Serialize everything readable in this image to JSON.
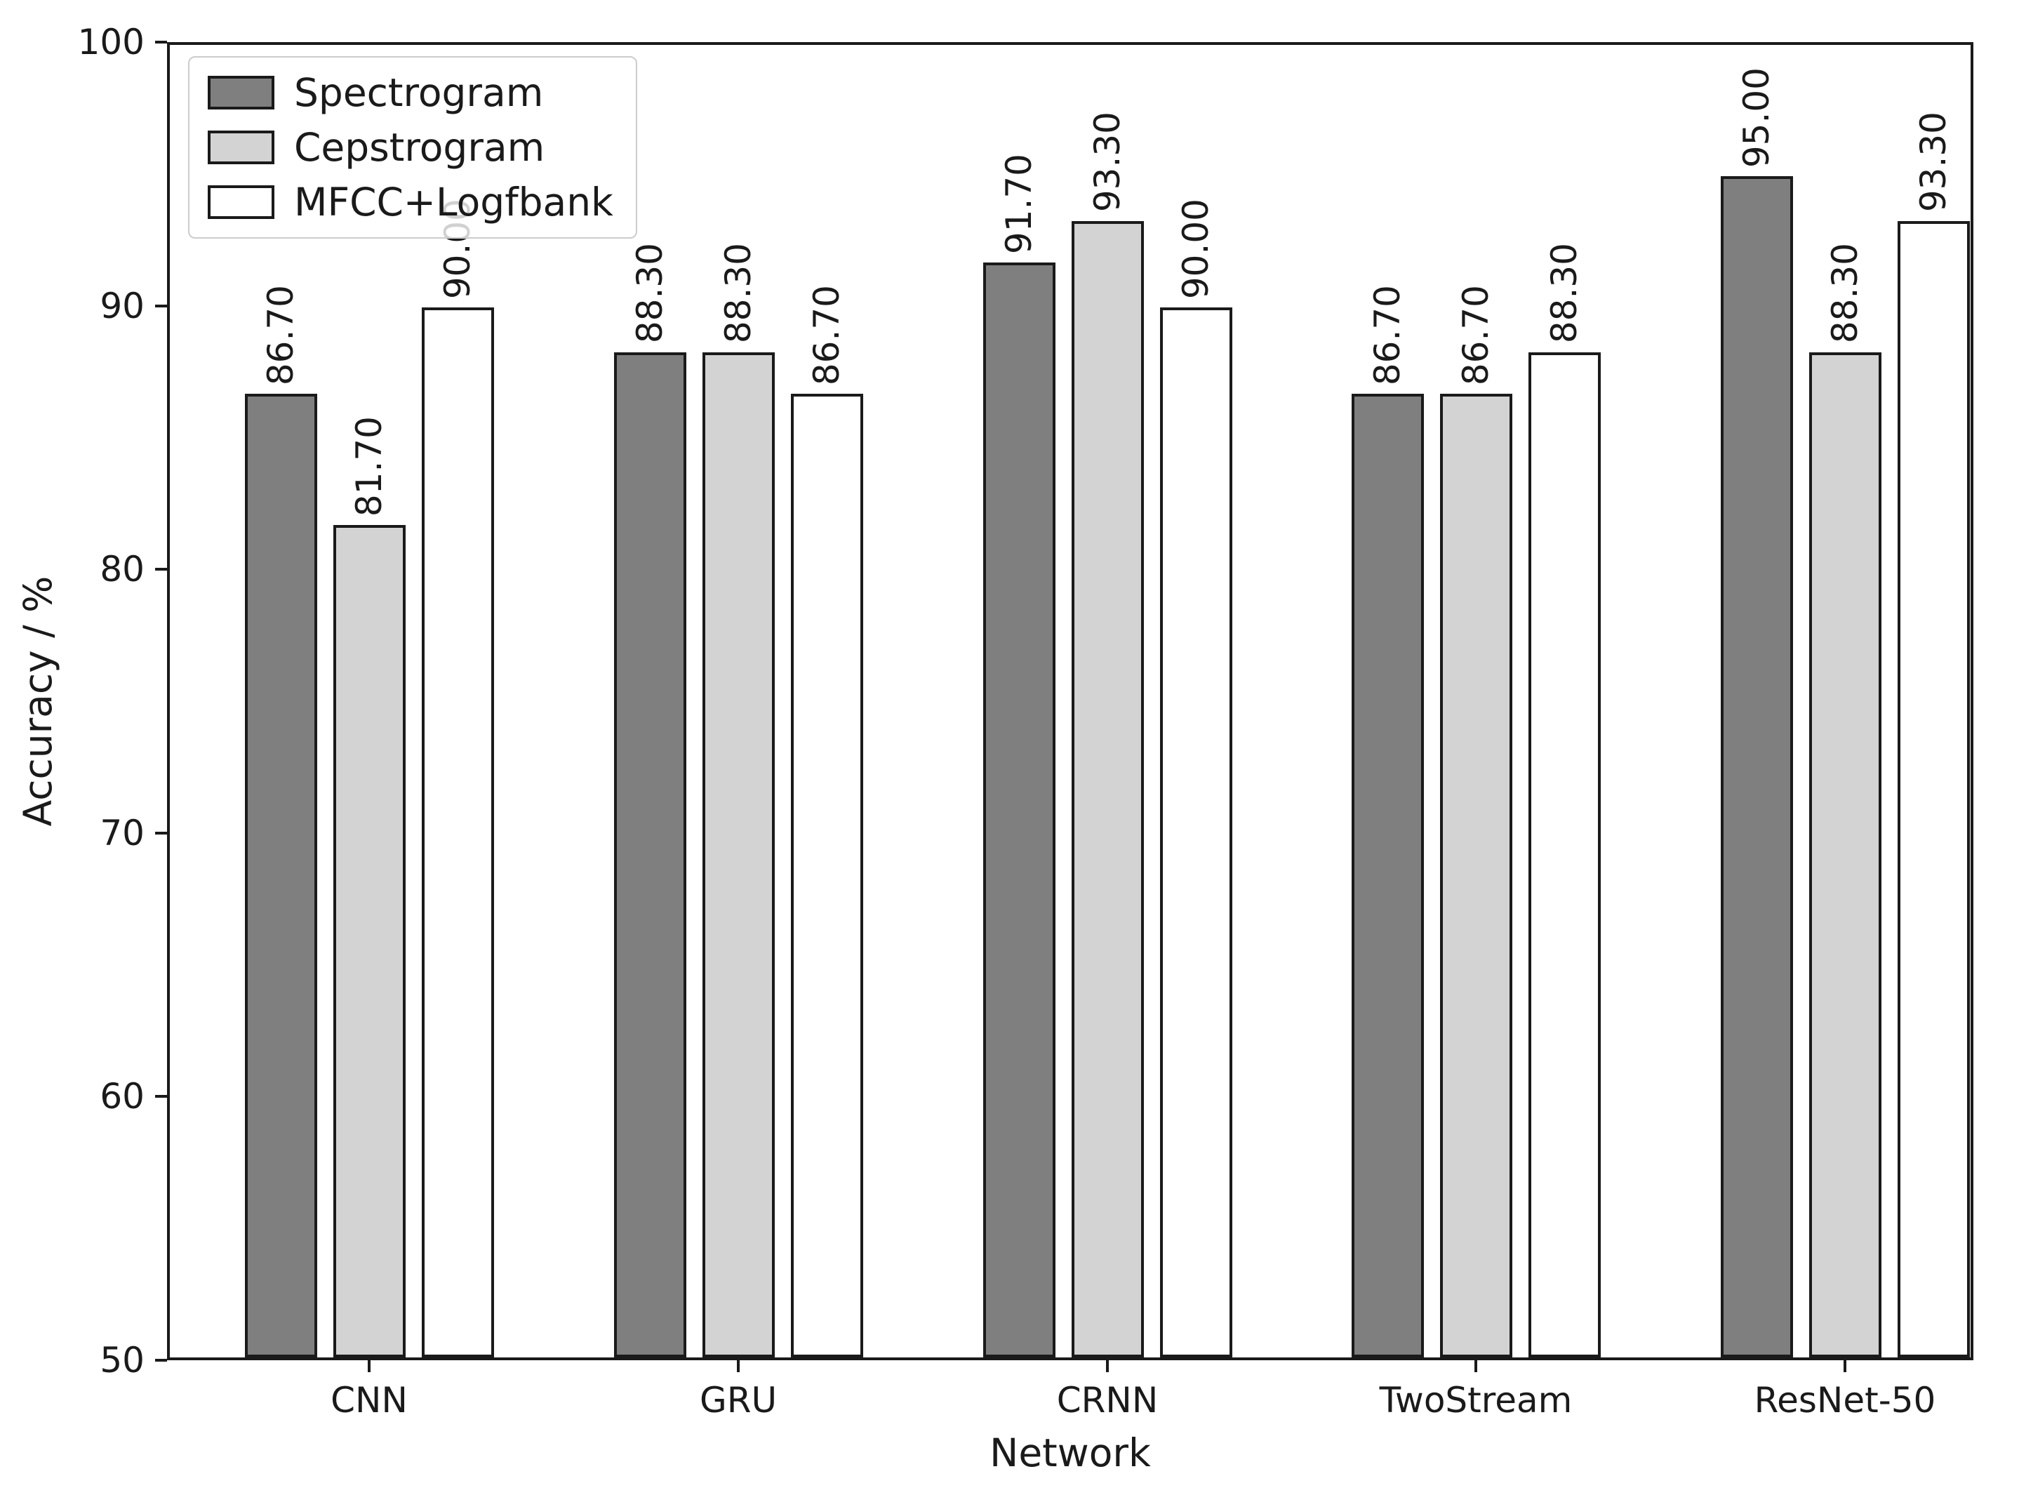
{
  "chart_data": {
    "type": "bar",
    "title": "",
    "xlabel": "Network",
    "ylabel": "Accuracy / %",
    "ylim": [
      50,
      100
    ],
    "yticks": [
      100,
      90,
      80,
      70,
      60,
      50
    ],
    "ytick_labels": [
      "100",
      "90",
      "80",
      "70",
      "60",
      "50"
    ],
    "categories": [
      "CNN",
      "GRU",
      "CRNN",
      "TwoStream",
      "ResNet-50"
    ],
    "series": [
      {
        "name": "Spectrogram",
        "color": "#7f7f7f",
        "values": [
          86.7,
          88.3,
          91.7,
          86.7,
          95.0
        ],
        "bar_labels": [
          "86.70",
          "88.30",
          "91.70",
          "86.70",
          "95.00"
        ]
      },
      {
        "name": "Cepstrogram",
        "color": "#d3d3d3",
        "values": [
          81.7,
          88.3,
          93.3,
          86.7,
          88.3
        ],
        "bar_labels": [
          "81.70",
          "88.30",
          "93.30",
          "86.70",
          "88.30"
        ]
      },
      {
        "name": "MFCC+Logfbank",
        "color": "#ffffff",
        "values": [
          90.0,
          86.7,
          90.0,
          88.3,
          93.3
        ],
        "bar_labels": [
          "90.00",
          "86.70",
          "90.00",
          "88.30",
          "93.30"
        ]
      }
    ],
    "legend_position": "upper left",
    "grid": false,
    "bar_edge_color": "#1a1a1a",
    "text_color": "#1a1a1a"
  }
}
